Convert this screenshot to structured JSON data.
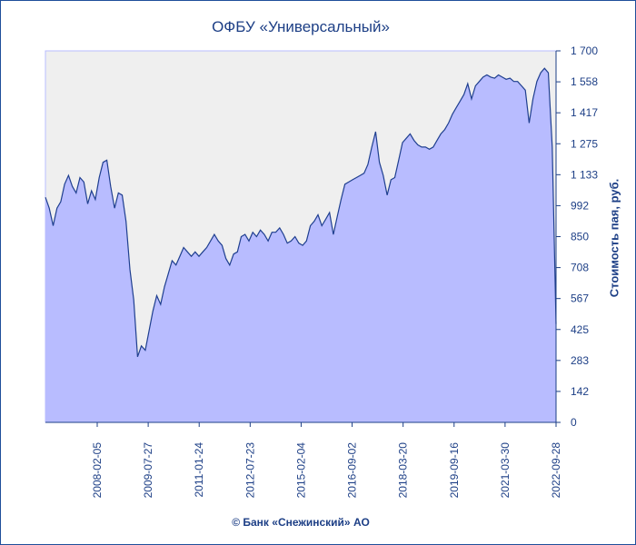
{
  "chart_data": {
    "type": "area",
    "title": "ОФБУ «Универсальный»",
    "ylabel": "Стоимость пая, руб.",
    "footer": "© Банк «Снежинский» АО",
    "ylim": [
      0,
      1700
    ],
    "yticks": [
      "1 700",
      "1 558",
      "1 417",
      "1 275",
      "1 133",
      "992",
      "850",
      "708",
      "567",
      "425",
      "283",
      "142",
      "0"
    ],
    "xticks": [
      "2008-02-05",
      "2009-07-27",
      "2011-01-24",
      "2012-07-23",
      "2015-02-04",
      "2016-09-02",
      "2018-03-20",
      "2019-09-16",
      "2021-03-30",
      "2022-09-28"
    ],
    "grid": false,
    "colors": {
      "fill": "#b8bcff",
      "line": "#1f3f8f",
      "plot_bg": "#efefef",
      "text": "#1d3f86"
    },
    "series": [
      {
        "values": [
          1030,
          980,
          900,
          980,
          1010,
          1090,
          1130,
          1080,
          1050,
          1120,
          1100,
          1000,
          1060,
          1020,
          1120,
          1190,
          1200,
          1080,
          980,
          1050,
          1040,
          920,
          700,
          560,
          300,
          350,
          330,
          420,
          510,
          580,
          540,
          620,
          680,
          740,
          720,
          760,
          800,
          780,
          760,
          780,
          760,
          780,
          800,
          830,
          860,
          830,
          810,
          750,
          720,
          770,
          780,
          850,
          860,
          830,
          870,
          850,
          880,
          860,
          830,
          870,
          870,
          890,
          860,
          820,
          830,
          850,
          820,
          810,
          830,
          900,
          920,
          950,
          900,
          930,
          960,
          860,
          940,
          1020,
          1090,
          1100,
          1110,
          1120,
          1130,
          1140,
          1180,
          1260,
          1330,
          1190,
          1130,
          1040,
          1110,
          1120,
          1200,
          1280,
          1300,
          1320,
          1290,
          1270,
          1260,
          1260,
          1250,
          1260,
          1290,
          1320,
          1340,
          1370,
          1410,
          1440,
          1470,
          1500,
          1550,
          1480,
          1540,
          1560,
          1580,
          1590,
          1580,
          1575,
          1590,
          1580,
          1570,
          1575,
          1560,
          1560,
          1540,
          1520,
          1370,
          1480,
          1560,
          1600,
          1620,
          1600,
          1260,
          450
        ]
      }
    ]
  }
}
